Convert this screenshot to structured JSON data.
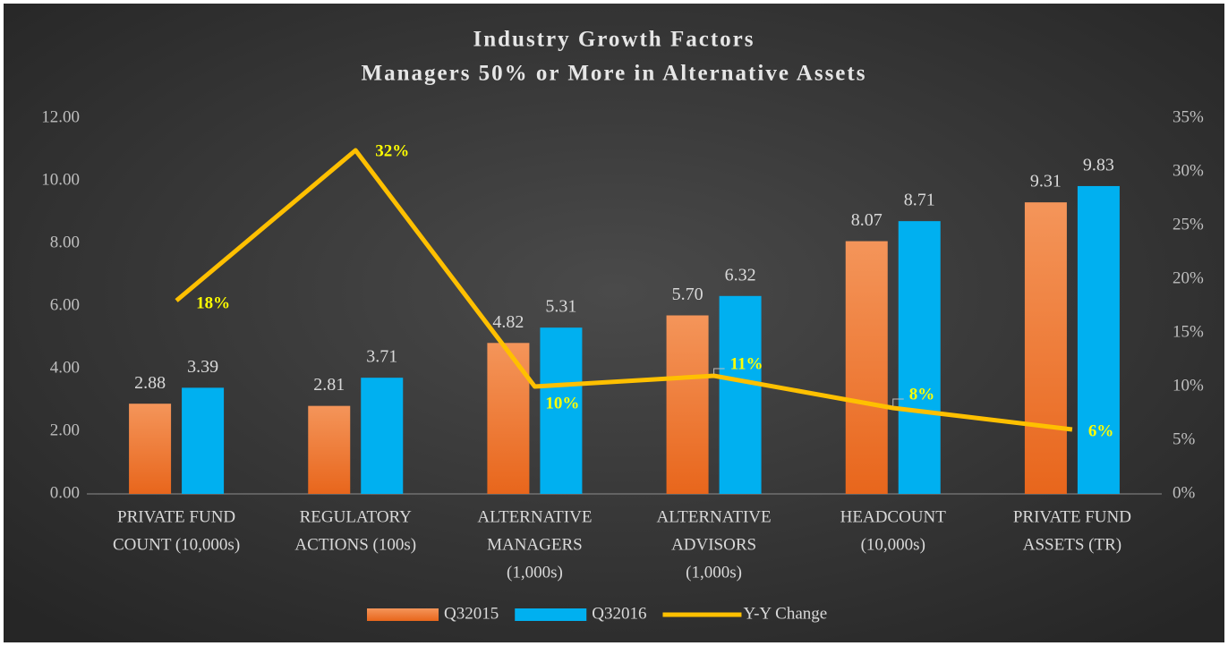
{
  "chart_data": {
    "type": "bar",
    "title": "Industry Growth Factors",
    "subtitle": "Managers 50% or More in Alternative Assets",
    "categories": [
      [
        "PRIVATE FUND",
        "COUNT (10,000s)"
      ],
      [
        "REGULATORY",
        "ACTIONS (100s)"
      ],
      [
        "ALTERNATIVE",
        "MANAGERS",
        "(1,000s)"
      ],
      [
        "ALTERNATIVE",
        "ADVISORS",
        "(1,000s)"
      ],
      [
        "HEADCOUNT",
        "(10,000s)"
      ],
      [
        "PRIVATE FUND",
        "ASSETS (TR)"
      ]
    ],
    "series": [
      {
        "name": "Q32015",
        "type": "bar",
        "color": "#ed7d31",
        "values": [
          2.88,
          2.81,
          4.82,
          5.7,
          8.07,
          9.31
        ],
        "value_labels": [
          "2.88",
          "2.81",
          "4.82",
          "5.70",
          "8.07",
          "9.31"
        ]
      },
      {
        "name": "Q32016",
        "type": "bar",
        "color": "#00b0f0",
        "values": [
          3.39,
          3.71,
          5.31,
          6.32,
          8.71,
          9.83
        ],
        "value_labels": [
          "3.39",
          "3.71",
          "5.31",
          "6.32",
          "8.71",
          "9.83"
        ]
      },
      {
        "name": "Y-Y Change",
        "type": "line",
        "axis": "y2",
        "color": "#ffc000",
        "values": [
          18,
          32,
          10,
          11,
          8,
          6
        ],
        "value_labels": [
          "18%",
          "32%",
          "10%",
          "11%",
          "8%",
          "6%"
        ]
      }
    ],
    "ylim": [
      0,
      12
    ],
    "yticks": [
      {
        "value": 0,
        "label": "0.00"
      },
      {
        "value": 2,
        "label": "2.00"
      },
      {
        "value": 4,
        "label": "4.00"
      },
      {
        "value": 6,
        "label": "6.00"
      },
      {
        "value": 8,
        "label": "8.00"
      },
      {
        "value": 10,
        "label": "10.00"
      },
      {
        "value": 12,
        "label": "12.00"
      }
    ],
    "y2lim": [
      0,
      35
    ],
    "y2ticks": [
      {
        "value": 0,
        "label": "0%"
      },
      {
        "value": 5,
        "label": "5%"
      },
      {
        "value": 10,
        "label": "10%"
      },
      {
        "value": 15,
        "label": "15%"
      },
      {
        "value": 20,
        "label": "20%"
      },
      {
        "value": 25,
        "label": "25%"
      },
      {
        "value": 30,
        "label": "30%"
      },
      {
        "value": 35,
        "label": "35%"
      }
    ],
    "legend": "bottom"
  }
}
